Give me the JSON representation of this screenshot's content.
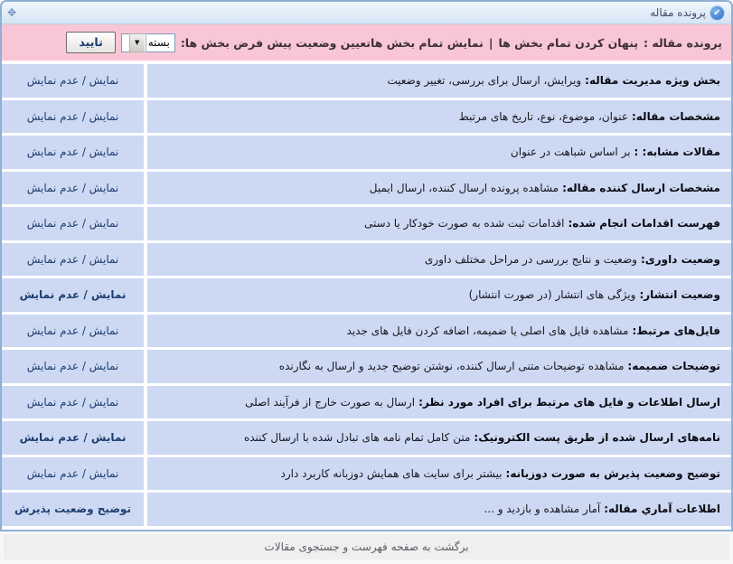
{
  "header": {
    "title": "پرونده مقاله",
    "check_icon_glyph": "✔",
    "move_icon_glyph": "✥"
  },
  "toolbar": {
    "title": "پرونده مقاله :",
    "hide_all_label": "پنهان کردن تمام بخش ها",
    "separator": "|",
    "show_all_label": "نمایش تمام بخش ها",
    "default_state_label": "تعیین وضعیت پیش فرض بخش ها:",
    "select_value": "بسته",
    "chevron_glyph": "▼",
    "confirm_label": "تایید"
  },
  "rows": [
    {
      "label": "بخش ویژه مدیریت مقاله:",
      "desc": "ویرایش، ارسال برای بررسی، تغییر وضعیت",
      "action": "نمایش / عدم نمایش",
      "action_bold": false
    },
    {
      "label": "مشخصات مقاله:",
      "desc": "عنوان، موضوع، نوع، تاریخ های مرتبط",
      "action": "نمایش / عدم نمایش",
      "action_bold": false
    },
    {
      "label": "مقالات مشابه: :",
      "desc": "بر اساس شباهت در عنوان",
      "action": "نمایش / عدم نمایش",
      "action_bold": false
    },
    {
      "label": "مشخصات ارسال کننده مقاله:",
      "desc": "مشاهده پرونده ارسال کننده، ارسال ایمیل",
      "action": "نمایش / عدم نمایش",
      "action_bold": false
    },
    {
      "label": "فهرست اقدامات انجام شده:",
      "desc": "اقدامات ثبت شده به صورت خودکار یا دستی",
      "action": "نمایش / عدم نمایش",
      "action_bold": false
    },
    {
      "label": "وضعیت داوری:",
      "desc": "وضعیت و نتایج بررسی در مراحل مختلف داوری",
      "action": "نمایش / عدم نمایش",
      "action_bold": false
    },
    {
      "label": "وضعیت انتشار:",
      "desc": "ویژگی های انتشار (در صورت انتشار)",
      "action": "نمایش / عدم نمایش",
      "action_bold": true
    },
    {
      "label": "فایل‌های مرتبط:",
      "desc": "مشاهده فایل های اصلی یا ضمیمه، اضافه کردن فایل های جدید",
      "action": "نمایش / عدم نمایش",
      "action_bold": false
    },
    {
      "label": "توضیحات ضمیمه:",
      "desc": "مشاهده توضیحات متنی ارسال کننده، نوشتن توضیح جدید و ارسال به نگارنده",
      "action": "نمایش / عدم نمایش",
      "action_bold": false
    },
    {
      "label": "ارسال اطلاعات و فایل های مرتبط برای افراد مورد نظر:",
      "desc": "ارسال به صورت خارج از فرآیند اصلی",
      "action": "نمایش / عدم نمایش",
      "action_bold": false
    },
    {
      "label": "نامه‌های ارسال شده از طریق پست الکترونیک:",
      "desc": "متن کامل تمام نامه های تبادل شده با ارسال کننده",
      "action": "نمایش / عدم نمایش",
      "action_bold": true
    },
    {
      "label": "توضیح وضعیت پذیرش به صورت دوزبانه:",
      "desc": "بیشتر برای سایت های همایش دوزبانه کاربرد دارد",
      "action": "نمایش / عدم نمایش",
      "action_bold": false
    },
    {
      "label": "اطلاعات آماري مقاله:",
      "desc": "آمار مشاهده و بازدید و ...",
      "action": "توضیح وضعیت پذیرش",
      "action_bold": true
    }
  ],
  "footer": {
    "back_label": "برگشت به صفحه فهرست و جستجوی مقالات"
  },
  "colors": {
    "frame_border": "#8fb0d4",
    "toolbar_bg": "#f8c6d6",
    "row_bg": "#cdd9f3",
    "link": "#1d3e71",
    "footer_bg": "#efefef"
  }
}
